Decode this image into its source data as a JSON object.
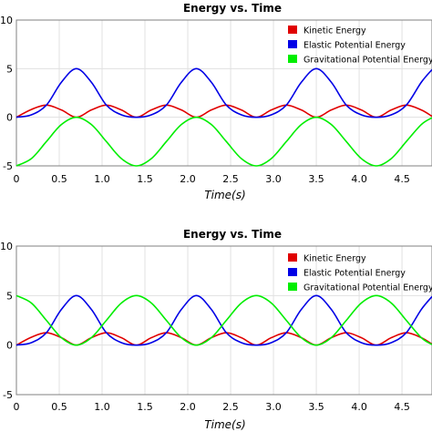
{
  "chart_data": [
    {
      "type": "line",
      "title": "Energy vs. Time",
      "xlabel": "Time(s)",
      "ylabel": "",
      "xlim": [
        0,
        4.85
      ],
      "ylim": [
        -5,
        10
      ],
      "xticks": [
        0,
        0.5,
        1.0,
        1.5,
        2.0,
        2.5,
        3.0,
        3.5,
        4.0,
        4.5
      ],
      "xtick_labels": [
        "0",
        "0.5",
        "1.0",
        "1.5",
        "2.0",
        "2.5",
        "3.0",
        "3.5",
        "4.0",
        "4.5"
      ],
      "yticks": [
        -5,
        0,
        5,
        10
      ],
      "ytick_labels": [
        "-5",
        "0",
        "5",
        "10"
      ],
      "grid": true,
      "legend": "top-right",
      "period": 1.4,
      "series": [
        {
          "name": "Kinetic Energy",
          "color": "#e00000",
          "points": [
            [
              0,
              0
            ],
            [
              0.175,
              0.8
            ],
            [
              0.35,
              1.25
            ],
            [
              0.525,
              0.75
            ],
            [
              0.7,
              0
            ],
            [
              0.875,
              0.75
            ],
            [
              1.05,
              1.25
            ],
            [
              1.225,
              0.75
            ],
            [
              1.4,
              0
            ],
            [
              1.575,
              0.75
            ],
            [
              1.75,
              1.25
            ],
            [
              1.925,
              0.75
            ],
            [
              2.1,
              0
            ],
            [
              2.275,
              0.75
            ],
            [
              2.45,
              1.25
            ],
            [
              2.625,
              0.75
            ],
            [
              2.8,
              0
            ],
            [
              2.975,
              0.75
            ],
            [
              3.15,
              1.25
            ],
            [
              3.325,
              0.75
            ],
            [
              3.5,
              0
            ],
            [
              3.675,
              0.75
            ],
            [
              3.85,
              1.25
            ],
            [
              4.025,
              0.75
            ],
            [
              4.2,
              0
            ],
            [
              4.375,
              0.75
            ],
            [
              4.55,
              1.25
            ],
            [
              4.725,
              0.75
            ],
            [
              4.85,
              0.1
            ]
          ]
        },
        {
          "name": "Elastic Potential Energy",
          "color": "#0000e6",
          "points": [
            [
              0,
              0
            ],
            [
              0.175,
              0.25
            ],
            [
              0.35,
              1.25
            ],
            [
              0.525,
              3.6
            ],
            [
              0.7,
              5
            ],
            [
              0.875,
              3.6
            ],
            [
              1.05,
              1.25
            ],
            [
              1.225,
              0.25
            ],
            [
              1.4,
              0
            ],
            [
              1.575,
              0.25
            ],
            [
              1.75,
              1.25
            ],
            [
              1.925,
              3.6
            ],
            [
              2.1,
              5
            ],
            [
              2.275,
              3.6
            ],
            [
              2.45,
              1.25
            ],
            [
              2.625,
              0.25
            ],
            [
              2.8,
              0
            ],
            [
              2.975,
              0.25
            ],
            [
              3.15,
              1.25
            ],
            [
              3.325,
              3.6
            ],
            [
              3.5,
              5
            ],
            [
              3.675,
              3.6
            ],
            [
              3.85,
              1.25
            ],
            [
              4.025,
              0.25
            ],
            [
              4.2,
              0
            ],
            [
              4.375,
              0.25
            ],
            [
              4.55,
              1.25
            ],
            [
              4.725,
              3.6
            ],
            [
              4.85,
              4.9
            ]
          ]
        },
        {
          "name": "Gravitational Potential Energy",
          "color": "#00ee00",
          "points": [
            [
              0,
              -5
            ],
            [
              0.175,
              -4.25
            ],
            [
              0.35,
              -2.5
            ],
            [
              0.525,
              -0.75
            ],
            [
              0.7,
              0
            ],
            [
              0.875,
              -0.75
            ],
            [
              1.05,
              -2.5
            ],
            [
              1.225,
              -4.25
            ],
            [
              1.4,
              -5
            ],
            [
              1.575,
              -4.25
            ],
            [
              1.75,
              -2.5
            ],
            [
              1.925,
              -0.75
            ],
            [
              2.1,
              0
            ],
            [
              2.275,
              -0.75
            ],
            [
              2.45,
              -2.5
            ],
            [
              2.625,
              -4.25
            ],
            [
              2.8,
              -5
            ],
            [
              2.975,
              -4.25
            ],
            [
              3.15,
              -2.5
            ],
            [
              3.325,
              -0.75
            ],
            [
              3.5,
              0
            ],
            [
              3.675,
              -0.75
            ],
            [
              3.85,
              -2.5
            ],
            [
              4.025,
              -4.25
            ],
            [
              4.2,
              -5
            ],
            [
              4.375,
              -4.25
            ],
            [
              4.55,
              -2.5
            ],
            [
              4.725,
              -0.75
            ],
            [
              4.85,
              -0.05
            ]
          ]
        }
      ]
    },
    {
      "type": "line",
      "title": "Energy vs. Time",
      "xlabel": "Time(s)",
      "ylabel": "",
      "xlim": [
        0,
        4.85
      ],
      "ylim": [
        -5,
        10
      ],
      "xticks": [
        0,
        0.5,
        1.0,
        1.5,
        2.0,
        2.5,
        3.0,
        3.5,
        4.0,
        4.5
      ],
      "xtick_labels": [
        "0",
        "0.5",
        "1.0",
        "1.5",
        "2.0",
        "2.5",
        "3.0",
        "3.5",
        "4.0",
        "4.5"
      ],
      "yticks": [
        -5,
        0,
        5,
        10
      ],
      "ytick_labels": [
        "-5",
        "0",
        "5",
        "10"
      ],
      "grid": true,
      "legend": "top-right",
      "period": 1.4,
      "series": [
        {
          "name": "Kinetic Energy",
          "color": "#e00000",
          "points": [
            [
              0,
              0
            ],
            [
              0.175,
              0.8
            ],
            [
              0.35,
              1.25
            ],
            [
              0.525,
              0.75
            ],
            [
              0.7,
              0
            ],
            [
              0.875,
              0.75
            ],
            [
              1.05,
              1.25
            ],
            [
              1.225,
              0.75
            ],
            [
              1.4,
              0
            ],
            [
              1.575,
              0.75
            ],
            [
              1.75,
              1.25
            ],
            [
              1.925,
              0.75
            ],
            [
              2.1,
              0
            ],
            [
              2.275,
              0.75
            ],
            [
              2.45,
              1.25
            ],
            [
              2.625,
              0.75
            ],
            [
              2.8,
              0
            ],
            [
              2.975,
              0.75
            ],
            [
              3.15,
              1.25
            ],
            [
              3.325,
              0.75
            ],
            [
              3.5,
              0
            ],
            [
              3.675,
              0.75
            ],
            [
              3.85,
              1.25
            ],
            [
              4.025,
              0.75
            ],
            [
              4.2,
              0
            ],
            [
              4.375,
              0.75
            ],
            [
              4.55,
              1.25
            ],
            [
              4.725,
              0.75
            ],
            [
              4.85,
              0.1
            ]
          ]
        },
        {
          "name": "Elastic Potential Energy",
          "color": "#0000e6",
          "points": [
            [
              0,
              0
            ],
            [
              0.175,
              0.25
            ],
            [
              0.35,
              1.25
            ],
            [
              0.525,
              3.6
            ],
            [
              0.7,
              5
            ],
            [
              0.875,
              3.6
            ],
            [
              1.05,
              1.25
            ],
            [
              1.225,
              0.25
            ],
            [
              1.4,
              0
            ],
            [
              1.575,
              0.25
            ],
            [
              1.75,
              1.25
            ],
            [
              1.925,
              3.6
            ],
            [
              2.1,
              5
            ],
            [
              2.275,
              3.6
            ],
            [
              2.45,
              1.25
            ],
            [
              2.625,
              0.25
            ],
            [
              2.8,
              0
            ],
            [
              2.975,
              0.25
            ],
            [
              3.15,
              1.25
            ],
            [
              3.325,
              3.6
            ],
            [
              3.5,
              5
            ],
            [
              3.675,
              3.6
            ],
            [
              3.85,
              1.25
            ],
            [
              4.025,
              0.25
            ],
            [
              4.2,
              0
            ],
            [
              4.375,
              0.25
            ],
            [
              4.55,
              1.25
            ],
            [
              4.725,
              3.6
            ],
            [
              4.85,
              4.9
            ]
          ]
        },
        {
          "name": "Gravitational Potential Energy",
          "color": "#00ee00",
          "points": [
            [
              0,
              5
            ],
            [
              0.175,
              4.25
            ],
            [
              0.35,
              2.5
            ],
            [
              0.525,
              0.75
            ],
            [
              0.7,
              0
            ],
            [
              0.875,
              0.75
            ],
            [
              1.05,
              2.5
            ],
            [
              1.225,
              4.25
            ],
            [
              1.4,
              5
            ],
            [
              1.575,
              4.25
            ],
            [
              1.75,
              2.5
            ],
            [
              1.925,
              0.75
            ],
            [
              2.1,
              0
            ],
            [
              2.275,
              0.75
            ],
            [
              2.45,
              2.5
            ],
            [
              2.625,
              4.25
            ],
            [
              2.8,
              5
            ],
            [
              2.975,
              4.25
            ],
            [
              3.15,
              2.5
            ],
            [
              3.325,
              0.75
            ],
            [
              3.5,
              0
            ],
            [
              3.675,
              0.75
            ],
            [
              3.85,
              2.5
            ],
            [
              4.025,
              4.25
            ],
            [
              4.2,
              5
            ],
            [
              4.375,
              4.25
            ],
            [
              4.55,
              2.5
            ],
            [
              4.725,
              0.75
            ],
            [
              4.85,
              0.05
            ]
          ]
        }
      ]
    }
  ]
}
